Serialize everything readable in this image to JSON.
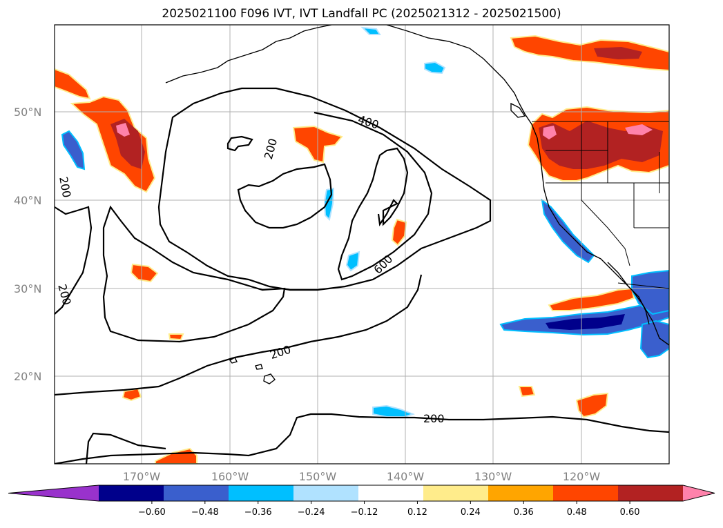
{
  "title": "2025021100 F096 IVT, IVT Landfall PC (2025021312 - 2025021500)",
  "map": {
    "lat_labels": [
      "50°N",
      "40°N",
      "30°N",
      "20°N"
    ],
    "lon_labels": [
      "170°W",
      "160°W",
      "150°W",
      "140°W",
      "130°W",
      "120°W"
    ],
    "contour_labels": [
      "400",
      "200",
      "200",
      "600",
      "200",
      "200",
      "200"
    ],
    "ivt_contour_levels": [
      200,
      400,
      600
    ]
  },
  "colorbar": {
    "ticks": [
      "−0.60",
      "−0.48",
      "−0.36",
      "−0.24",
      "−0.12",
      "0.12",
      "0.24",
      "0.36",
      "0.48",
      "0.60"
    ],
    "colors": [
      "#9932cc",
      "#00008b",
      "#3a5fcd",
      "#00bfff",
      "#b0e2ff",
      "#ffffff",
      "#ffec8b",
      "#ffa500",
      "#ff4500",
      "#b22222",
      "#ff82ab"
    ],
    "extend": "both"
  }
}
